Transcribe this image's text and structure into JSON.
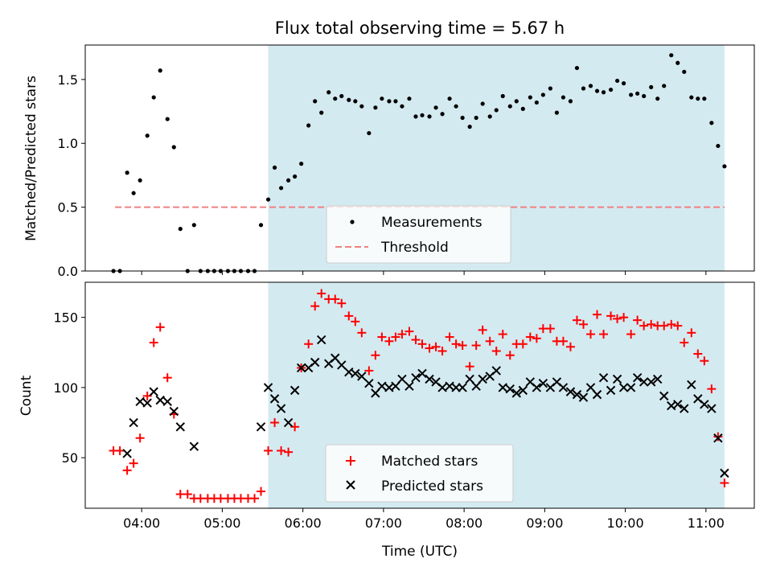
{
  "chart_data": [
    {
      "type": "scatter",
      "title": "Flux total observing time = 5.67 h",
      "xlabel": "",
      "ylabel": "Matched/Predicted stars",
      "xlim": [
        3.3,
        11.6
      ],
      "ylim": [
        0,
        1.77
      ],
      "yticks": [
        "0.0",
        "0.5",
        "1.0",
        "1.5"
      ],
      "observing_window": [
        5.57,
        11.23
      ],
      "threshold": {
        "name": "Threshold",
        "value": 0.5,
        "x": [
          3.67,
          11.23
        ],
        "color": "#f08080"
      },
      "legend": {
        "placement": "lower-center"
      },
      "series": [
        {
          "name": "Measurements",
          "marker": "dot",
          "color": "#000000",
          "x": [
            3.65,
            3.73,
            3.82,
            3.9,
            3.98,
            4.07,
            4.15,
            4.23,
            4.32,
            4.4,
            4.48,
            4.57,
            4.65,
            4.73,
            4.82,
            4.9,
            4.98,
            5.07,
            5.15,
            5.23,
            5.32,
            5.4,
            5.48,
            5.57,
            5.65,
            5.73,
            5.82,
            5.9,
            5.98,
            6.07,
            6.15,
            6.23,
            6.32,
            6.4,
            6.48,
            6.57,
            6.65,
            6.73,
            6.82,
            6.9,
            6.98,
            7.07,
            7.15,
            7.23,
            7.32,
            7.4,
            7.48,
            7.57,
            7.65,
            7.73,
            7.82,
            7.9,
            7.98,
            8.07,
            8.15,
            8.23,
            8.32,
            8.4,
            8.48,
            8.57,
            8.65,
            8.73,
            8.82,
            8.9,
            8.98,
            9.07,
            9.15,
            9.23,
            9.32,
            9.4,
            9.48,
            9.57,
            9.65,
            9.73,
            9.82,
            9.9,
            9.98,
            10.07,
            10.15,
            10.23,
            10.32,
            10.4,
            10.48,
            10.57,
            10.65,
            10.73,
            10.82,
            10.9,
            10.98,
            11.07,
            11.15,
            11.23
          ],
          "y": [
            0,
            0,
            0.77,
            0.61,
            0.71,
            1.06,
            1.36,
            1.57,
            1.19,
            0.97,
            0.33,
            0,
            0.36,
            0,
            0,
            0,
            0,
            0,
            0,
            0,
            0,
            0,
            0.36,
            0.56,
            0.81,
            0.65,
            0.71,
            0.74,
            0.84,
            1.14,
            1.33,
            1.24,
            1.4,
            1.35,
            1.37,
            1.34,
            1.33,
            1.29,
            1.08,
            1.28,
            1.35,
            1.33,
            1.33,
            1.29,
            1.35,
            1.21,
            1.22,
            1.21,
            1.28,
            1.23,
            1.35,
            1.29,
            1.2,
            1.13,
            1.2,
            1.31,
            1.21,
            1.26,
            1.37,
            1.29,
            1.33,
            1.27,
            1.36,
            1.32,
            1.38,
            1.43,
            1.24,
            1.36,
            1.33,
            1.59,
            1.43,
            1.45,
            1.41,
            1.4,
            1.42,
            1.49,
            1.47,
            1.38,
            1.39,
            1.37,
            1.44,
            1.35,
            1.45,
            1.69,
            1.63,
            1.56,
            1.36,
            1.35,
            1.35,
            1.16,
            0.98,
            0.82
          ]
        }
      ]
    },
    {
      "type": "scatter",
      "title": "",
      "xlabel": "Time (UTC)",
      "ylabel": "Count",
      "xlim": [
        3.3,
        11.6
      ],
      "ylim": [
        14,
        175
      ],
      "xticks": [
        "04:00",
        "05:00",
        "06:00",
        "07:00",
        "08:00",
        "09:00",
        "10:00",
        "11:00"
      ],
      "xtick_values": [
        4,
        5,
        6,
        7,
        8,
        9,
        10,
        11
      ],
      "yticks": [
        "50",
        "100",
        "150"
      ],
      "observing_window": [
        5.57,
        11.23
      ],
      "legend": {
        "placement": "lower-center"
      },
      "series": [
        {
          "name": "Matched stars",
          "marker": "plus",
          "color": "#ff0000",
          "x": [
            3.65,
            3.73,
            3.82,
            3.9,
            3.98,
            4.07,
            4.15,
            4.23,
            4.32,
            4.4,
            4.48,
            4.57,
            4.65,
            4.73,
            4.82,
            4.9,
            4.98,
            5.07,
            5.15,
            5.23,
            5.32,
            5.4,
            5.48,
            5.57,
            5.65,
            5.73,
            5.82,
            5.9,
            5.98,
            6.07,
            6.15,
            6.23,
            6.32,
            6.4,
            6.48,
            6.57,
            6.65,
            6.73,
            6.82,
            6.9,
            6.98,
            7.07,
            7.15,
            7.23,
            7.32,
            7.4,
            7.48,
            7.57,
            7.65,
            7.73,
            7.82,
            7.9,
            7.98,
            8.07,
            8.15,
            8.23,
            8.32,
            8.4,
            8.48,
            8.57,
            8.65,
            8.73,
            8.82,
            8.9,
            8.98,
            9.07,
            9.15,
            9.23,
            9.32,
            9.4,
            9.48,
            9.57,
            9.65,
            9.73,
            9.82,
            9.9,
            9.98,
            10.07,
            10.15,
            10.23,
            10.32,
            10.4,
            10.48,
            10.57,
            10.65,
            10.73,
            10.82,
            10.9,
            10.98,
            11.07,
            11.15,
            11.23
          ],
          "y": [
            55,
            55,
            41,
            46,
            64,
            94,
            132,
            143,
            107,
            81,
            24,
            24,
            21,
            21,
            21,
            21,
            21,
            21,
            21,
            21,
            21,
            21,
            26,
            55,
            75,
            55,
            54,
            72,
            114,
            131,
            158,
            167,
            163,
            163,
            160,
            151,
            147,
            139,
            112,
            123,
            136,
            133,
            136,
            138,
            140,
            134,
            131,
            128,
            129,
            126,
            136,
            131,
            130,
            115,
            130,
            141,
            133,
            126,
            138,
            123,
            131,
            131,
            136,
            135,
            142,
            142,
            133,
            133,
            129,
            148,
            145,
            138,
            152,
            138,
            151,
            149,
            150,
            138,
            148,
            144,
            145,
            144,
            144,
            145,
            144,
            132,
            139,
            124,
            119,
            99,
            65,
            32
          ]
        },
        {
          "name": "Predicted stars",
          "marker": "x",
          "color": "#000000",
          "x": [
            3.82,
            3.9,
            3.98,
            4.07,
            4.15,
            4.23,
            4.32,
            4.4,
            4.48,
            4.65,
            5.48,
            5.57,
            5.65,
            5.73,
            5.82,
            5.9,
            5.98,
            6.07,
            6.15,
            6.23,
            6.32,
            6.4,
            6.48,
            6.57,
            6.65,
            6.73,
            6.82,
            6.9,
            6.98,
            7.07,
            7.15,
            7.23,
            7.32,
            7.4,
            7.48,
            7.57,
            7.65,
            7.73,
            7.82,
            7.9,
            7.98,
            8.07,
            8.15,
            8.23,
            8.32,
            8.4,
            8.48,
            8.57,
            8.65,
            8.73,
            8.82,
            8.9,
            8.98,
            9.07,
            9.15,
            9.23,
            9.32,
            9.4,
            9.48,
            9.57,
            9.65,
            9.73,
            9.82,
            9.9,
            9.98,
            10.07,
            10.15,
            10.23,
            10.32,
            10.4,
            10.48,
            10.57,
            10.65,
            10.73,
            10.82,
            10.9,
            10.98,
            11.07,
            11.15,
            11.23
          ],
          "y": [
            53,
            75,
            90,
            89,
            97,
            91,
            90,
            83,
            72,
            58,
            72,
            100,
            92,
            85,
            75,
            98,
            114,
            114,
            118,
            134,
            117,
            121,
            116,
            111,
            110,
            108,
            103,
            96,
            101,
            100,
            101,
            106,
            101,
            107,
            110,
            106,
            104,
            100,
            101,
            100,
            100,
            106,
            101,
            106,
            108,
            112,
            100,
            99,
            96,
            98,
            104,
            100,
            103,
            100,
            104,
            100,
            97,
            95,
            93,
            100,
            95,
            107,
            98,
            106,
            100,
            100,
            107,
            104,
            104,
            106,
            94,
            87,
            88,
            85,
            102,
            92,
            88,
            85,
            64,
            39
          ]
        }
      ]
    }
  ]
}
